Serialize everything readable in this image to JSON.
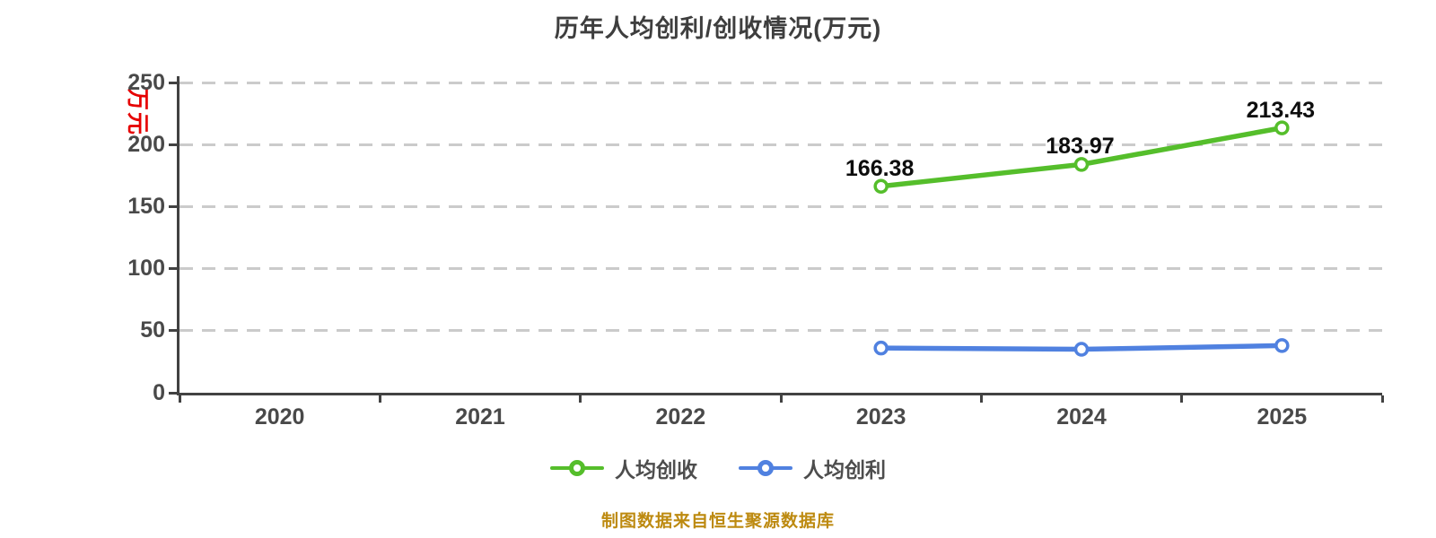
{
  "page": {
    "title": "历年人均创利/创收情况(万元)",
    "y_axis_unit": "万元",
    "footer": "制图数据来自恒生聚源数据库"
  },
  "colors": {
    "title_text": "#3e3e3e",
    "axis_line": "#424242",
    "tick_text": "#494949",
    "grid_line": "#cbcbcb",
    "unit_text": "#e60000",
    "footer_text": "#bd8a10",
    "revenue_green": "#55be2b",
    "profit_blue": "#5081e0",
    "data_label_text": "#0d0d0d"
  },
  "chart_data": {
    "type": "line",
    "title": "历年人均创利/创收情况(万元)",
    "categories": [
      "2020",
      "2021",
      "2022",
      "2023",
      "2024",
      "2025"
    ],
    "xlabel": "",
    "ylabel": "万元",
    "ylim": [
      0,
      250
    ],
    "y_ticks": [
      0,
      50,
      100,
      150,
      200,
      250
    ],
    "grid": "horizontal dashed",
    "legend_position": "bottom",
    "series": [
      {
        "key": "per-capita-revenue",
        "name": "人均创收",
        "color": "#55be2b",
        "points": [
          {
            "x": "2023",
            "y": 166.38,
            "label": "166.38"
          },
          {
            "x": "2024",
            "y": 183.97,
            "label": "183.97"
          },
          {
            "x": "2025",
            "y": 213.43,
            "label": "213.43"
          }
        ]
      },
      {
        "key": "per-capita-profit",
        "name": "人均创利",
        "color": "#5081e0",
        "points": [
          {
            "x": "2023",
            "y": 36,
            "label": ""
          },
          {
            "x": "2024",
            "y": 35,
            "label": ""
          },
          {
            "x": "2025",
            "y": 38,
            "label": ""
          }
        ]
      }
    ]
  }
}
